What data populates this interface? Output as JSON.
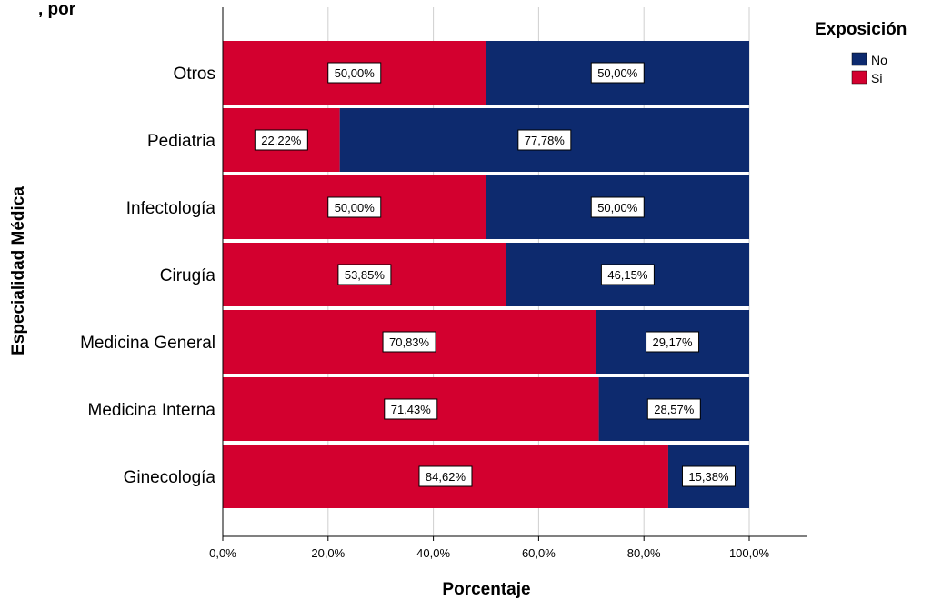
{
  "chart_data": {
    "type": "bar",
    "orientation": "horizontal",
    "stacked": true,
    "categories": [
      "Otros",
      "Pediatria",
      "Infectología",
      "Cirugía",
      "Medicina General",
      "Medicina Interna",
      "Ginecología"
    ],
    "series": [
      {
        "name": "Si",
        "color": "#d3002f",
        "values": [
          50.0,
          22.22,
          50.0,
          53.85,
          70.83,
          71.43,
          84.62
        ],
        "labels": [
          "50,00%",
          "22,22%",
          "50,00%",
          "53,85%",
          "70,83%",
          "71,43%",
          "84,62%"
        ]
      },
      {
        "name": "No",
        "color": "#0d2a6e",
        "values": [
          50.0,
          77.78,
          50.0,
          46.15,
          29.17,
          28.57,
          15.38
        ],
        "labels": [
          "50,00%",
          "77,78%",
          "50,00%",
          "46,15%",
          "29,17%",
          "28,57%",
          "15,38%"
        ]
      }
    ],
    "title": ", por",
    "xlabel": "Porcentaje",
    "ylabel": "Especialidad Médica",
    "xlim": [
      0,
      100
    ],
    "xticks": [
      0,
      20,
      40,
      60,
      80,
      100
    ],
    "xtick_labels": [
      "0,0%",
      "20,0%",
      "40,0%",
      "60,0%",
      "80,0%",
      "100,0%"
    ],
    "grid": "vertical",
    "legend": {
      "title": "Exposición",
      "position": "top-right",
      "entries": [
        "No",
        "Si"
      ]
    }
  }
}
